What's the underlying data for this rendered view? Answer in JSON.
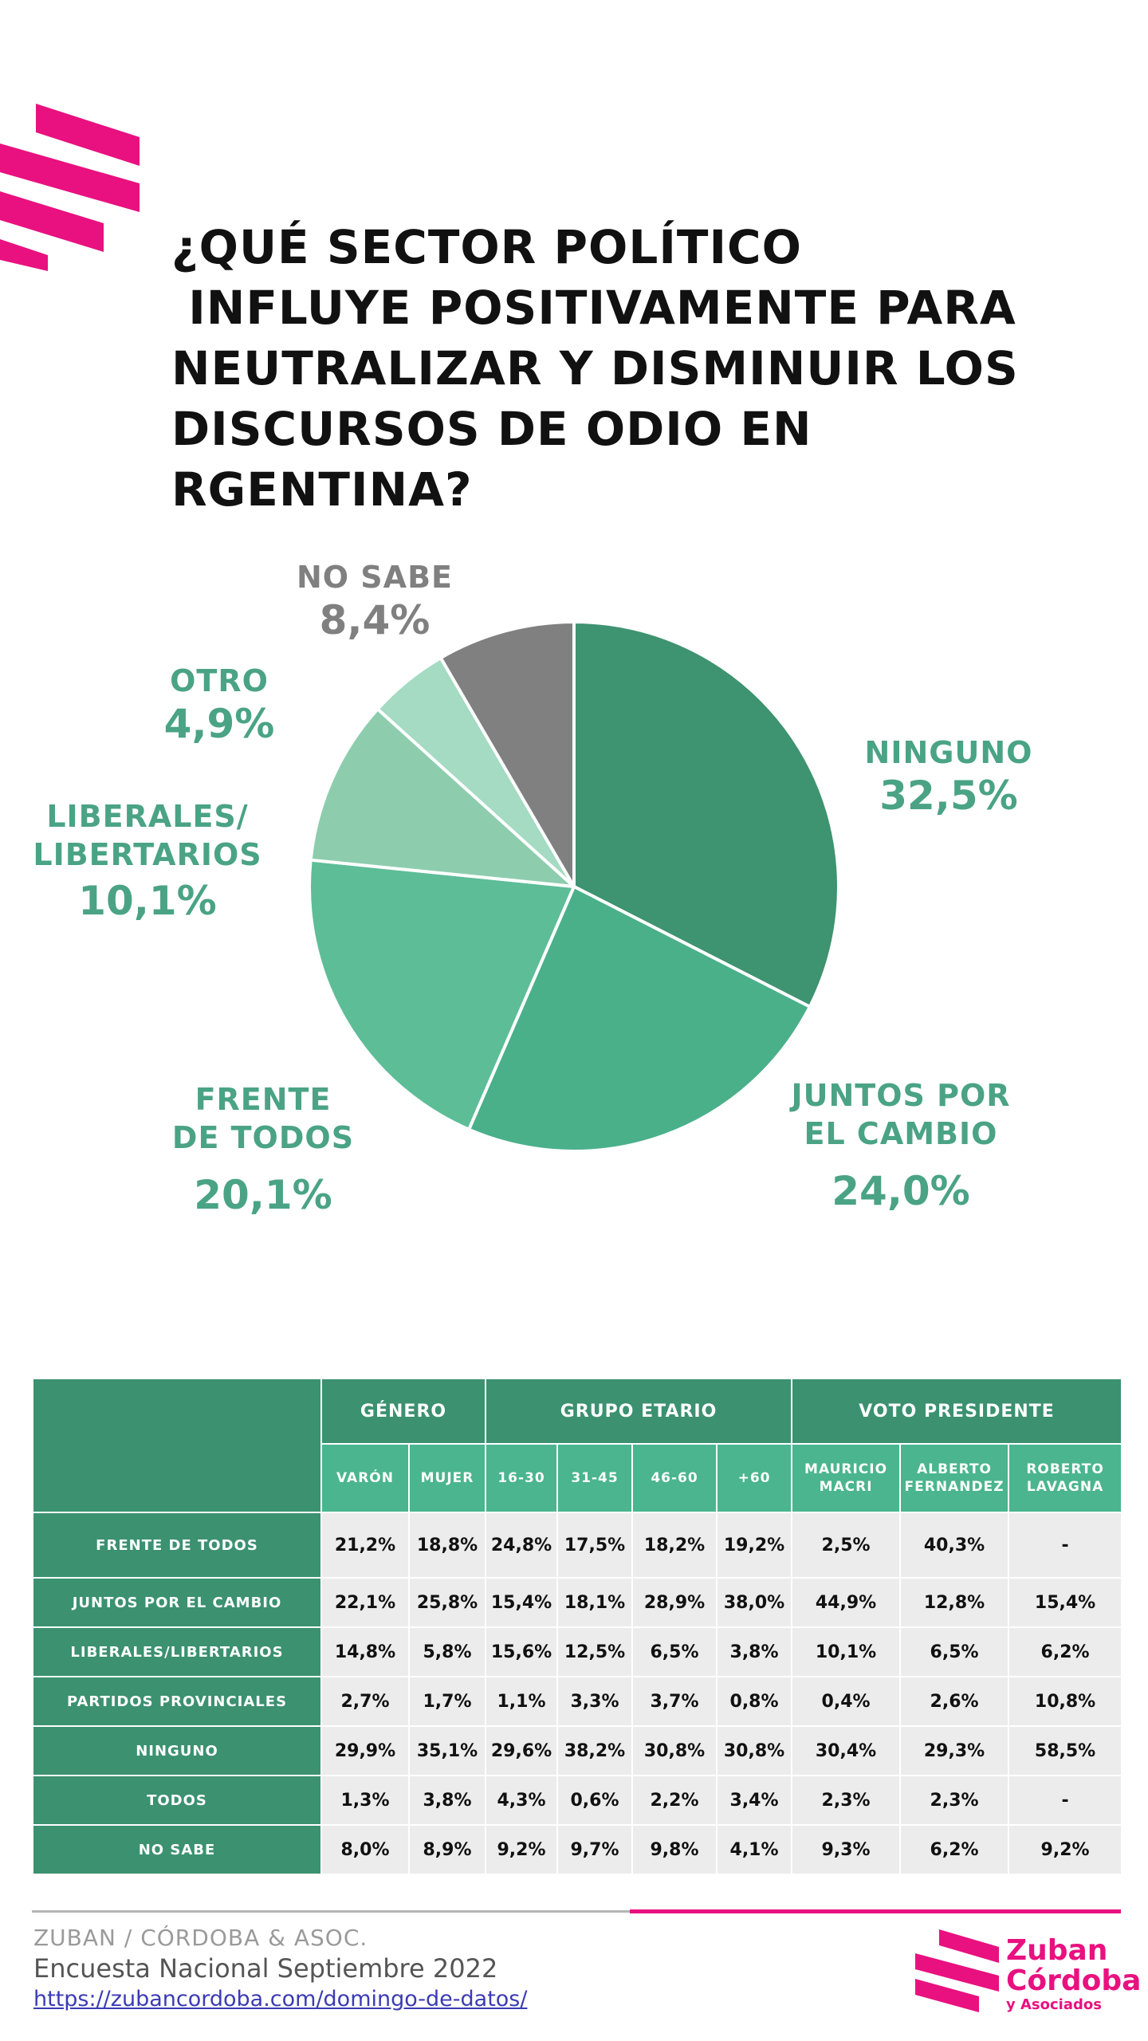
{
  "title": "¿QUÉ SECTOR POLÍTICO\n INFLUYE POSITIVAMENTE PARA\nNEUTRALIZAR Y DISMINUIR LOS\nDISCURSOS DE ODIO EN\nRGENTINA?",
  "colors": {
    "accent_pink": "#e8117f",
    "ninguno": "#3e9370",
    "juntos": "#4ab08a",
    "frente": "#5dbd97",
    "liberales": "#8dcdae",
    "otro": "#a4dbc2",
    "no_sabe": "#808080",
    "label_green": "#4aa385",
    "label_gray": "#808080",
    "table_dark": "#3b9170",
    "table_light": "#4ab58e",
    "table_cell": "#ececec"
  },
  "chart_data": {
    "type": "pie",
    "title": "¿QUÉ SECTOR POLÍTICO INFLUYE POSITIVAMENTE PARA NEUTRALIZAR Y DISMINUIR LOS DISCURSOS DE ODIO EN RGENTINA?",
    "slices": [
      {
        "key": "ninguno",
        "name": "NINGUNO",
        "value": 32.5,
        "label": "32,5%"
      },
      {
        "key": "juntos",
        "name": "JUNTOS POR\nEL CAMBIO",
        "value": 24.0,
        "label": "24,0%"
      },
      {
        "key": "frente",
        "name": "FRENTE\nDE TODOS",
        "value": 20.1,
        "label": "20,1%"
      },
      {
        "key": "liberales",
        "name": "LIBERALES/\nLIBERTARIOS",
        "value": 10.1,
        "label": "10,1%"
      },
      {
        "key": "otro",
        "name": "OTRO",
        "value": 4.9,
        "label": "4,9%"
      },
      {
        "key": "no_sabe",
        "name": "NO SABE",
        "value": 8.4,
        "label": "8,4%"
      }
    ]
  },
  "table": {
    "groups": [
      {
        "label": "GÉNERO",
        "span": 2
      },
      {
        "label": "GRUPO ETARIO",
        "span": 4
      },
      {
        "label": "VOTO PRESIDENTE",
        "span": 3
      }
    ],
    "columns": [
      "VARÓN",
      "MUJER",
      "16-30",
      "31-45",
      "46-60",
      "+60",
      "MAURICIO\nMACRI",
      "ALBERTO\nFERNANDEZ",
      "ROBERTO\nLAVAGNA"
    ],
    "rows": [
      {
        "label": "FRENTE DE TODOS",
        "values": [
          "21,2%",
          "18,8%",
          "24,8%",
          "17,5%",
          "18,2%",
          "19,2%",
          "2,5%",
          "40,3%",
          "-"
        ]
      },
      {
        "label": "JUNTOS POR EL CAMBIO",
        "values": [
          "22,1%",
          "25,8%",
          "15,4%",
          "18,1%",
          "28,9%",
          "38,0%",
          "44,9%",
          "12,8%",
          "15,4%"
        ]
      },
      {
        "label": "LIBERALES/LIBERTARIOS",
        "values": [
          "14,8%",
          "5,8%",
          "15,6%",
          "12,5%",
          "6,5%",
          "3,8%",
          "10,1%",
          "6,5%",
          "6,2%"
        ]
      },
      {
        "label": "PARTIDOS PROVINCIALES",
        "values": [
          "2,7%",
          "1,7%",
          "1,1%",
          "3,3%",
          "3,7%",
          "0,8%",
          "0,4%",
          "2,6%",
          "10,8%"
        ]
      },
      {
        "label": "NINGUNO",
        "values": [
          "29,9%",
          "35,1%",
          "29,6%",
          "38,2%",
          "30,8%",
          "30,8%",
          "30,4%",
          "29,3%",
          "58,5%"
        ]
      },
      {
        "label": "TODOS",
        "values": [
          "1,3%",
          "3,8%",
          "4,3%",
          "0,6%",
          "2,2%",
          "3,4%",
          "2,3%",
          "2,3%",
          "-"
        ]
      },
      {
        "label": "NO SABE",
        "values": [
          "8,0%",
          "8,9%",
          "9,2%",
          "9,7%",
          "9,8%",
          "4,1%",
          "9,3%",
          "6,2%",
          "9,2%"
        ]
      }
    ]
  },
  "footer": {
    "org": "ZUBAN / CÓRDOBA & ASOC.",
    "survey": "Encuesta Nacional Septiembre 2022",
    "link": "https://zubancordoba.com/domingo-de-datos/"
  },
  "logo": {
    "line1": "Zuban",
    "line2": "Córdoba",
    "line3": "y Asociados"
  }
}
